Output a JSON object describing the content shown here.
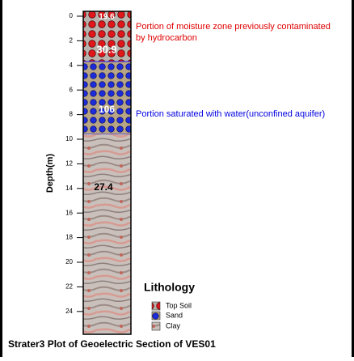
{
  "axis": {
    "label": "Depth(m)",
    "ticks": [
      0,
      2,
      4,
      6,
      8,
      10,
      12,
      14,
      16,
      18,
      20,
      22,
      24
    ]
  },
  "layer_labels": [
    "19.6",
    "30.9",
    "106",
    "27.4"
  ],
  "annotations": [
    {
      "lines": [
        "Portion of moisture zone previously contaminated",
        "by hydrocarbon"
      ]
    },
    {
      "lines": [
        "Portion saturated with water(unconfined aquifer)"
      ]
    }
  ],
  "legend": {
    "title": "Lithology",
    "items": [
      "Top Soil",
      "Sand",
      "Clay"
    ]
  },
  "caption": "Strater3 Plot of Geoelectric Section of VES01"
}
